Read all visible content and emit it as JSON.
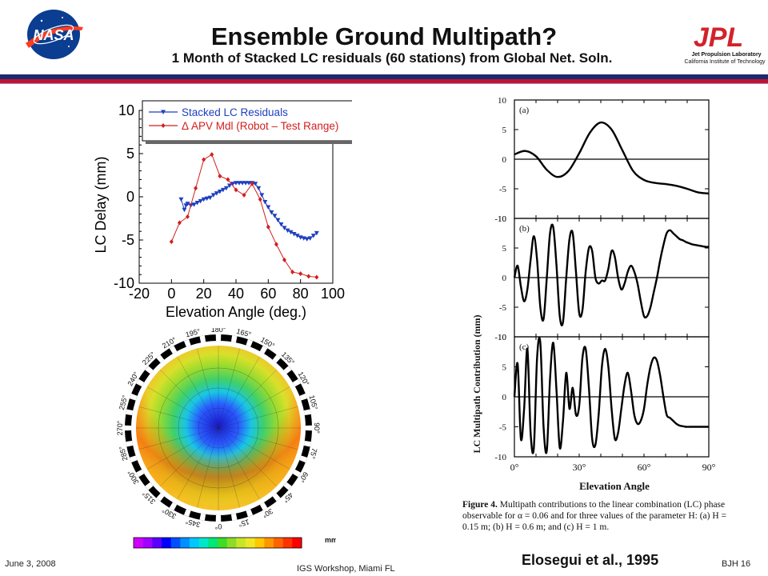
{
  "slide": {
    "title": "Ensemble Ground Multipath?",
    "subtitle": "1 Month of Stacked LC residuals (60 stations) from Global Net. Soln.",
    "date": "June 3, 2008",
    "venue": "IGS Workshop, Miami FL",
    "page": "BJH 16",
    "credit": "Elosegui et al., 1995",
    "nasa_logo_text": "NASA",
    "jpl_logo_text": "JPL",
    "jpl_line1": "Jet Propulsion Laboratory",
    "jpl_line2": "California Institute of Technology",
    "colors": {
      "rule_navy": "#1c2b6b",
      "rule_red": "#c8102e",
      "nasa_blue": "#0b3d91",
      "jpl_red": "#d2232a"
    }
  },
  "polar_plot": {
    "azimuth_labels": [
      "180°",
      "165°",
      "150°",
      "135°",
      "120°",
      "105°",
      "90°",
      "75°",
      "60°",
      "45°",
      "30°",
      "15°",
      "0°",
      "345°",
      "330°",
      "315°",
      "300°",
      "285°",
      "270°",
      "255°",
      "240°",
      "225°",
      "210°",
      "195°"
    ],
    "colorbar_unit": "mm"
  },
  "fig4": {
    "caption_label": "Figure 4.",
    "caption_text": "Multipath contributions to the linear combination (LC) phase observable for α = 0.06 and for three values of the parameter H: (a) H = 0.15 m; (b) H = 0.6 m; and (c) H = 1 m."
  },
  "chart_data": [
    {
      "type": "line",
      "xlabel": "Elevation Angle (deg.)",
      "ylabel": "LC Delay (mm)",
      "xlim": [
        -20,
        100
      ],
      "ylim": [
        -10,
        10
      ],
      "xticks": [
        -20,
        0,
        20,
        40,
        60,
        80,
        100
      ],
      "yticks": [
        10,
        5,
        0,
        -5,
        -10
      ],
      "legend": "top-right",
      "series": [
        {
          "name": "Stacked LC Residuals",
          "color": "#1f3fbf",
          "marker": "triangle-down",
          "x": [
            6,
            8,
            9,
            10,
            12,
            14,
            16,
            18,
            20,
            22,
            24,
            26,
            28,
            30,
            32,
            34,
            36,
            38,
            40,
            42,
            44,
            46,
            48,
            50,
            52,
            54,
            56,
            58,
            60,
            62,
            64,
            66,
            68,
            70,
            72,
            74,
            76,
            78,
            80,
            82,
            84,
            86,
            88,
            90
          ],
          "y": [
            -0.3,
            -1.5,
            -1.0,
            -0.8,
            -1.0,
            -0.9,
            -0.7,
            -0.5,
            -0.3,
            -0.2,
            -0.1,
            0.2,
            0.4,
            0.6,
            0.8,
            1.0,
            1.3,
            1.5,
            1.6,
            1.6,
            1.6,
            1.6,
            1.6,
            1.6,
            1.5,
            1.0,
            0.2,
            -0.6,
            -1.2,
            -1.8,
            -2.2,
            -2.7,
            -3.2,
            -3.6,
            -3.9,
            -4.1,
            -4.3,
            -4.5,
            -4.7,
            -4.8,
            -4.9,
            -4.8,
            -4.5,
            -4.2
          ]
        },
        {
          "name": "Δ APV Mdl (Robot – Test Range)",
          "color": "#d21e1e",
          "marker": "diamond",
          "x": [
            0,
            5,
            10,
            15,
            20,
            25,
            30,
            35,
            40,
            45,
            50,
            55,
            60,
            65,
            70,
            75,
            80,
            85,
            90
          ],
          "y": [
            -5.2,
            -3.0,
            -2.3,
            1.0,
            4.3,
            4.9,
            2.4,
            2.0,
            0.8,
            0.2,
            1.5,
            -0.3,
            -3.5,
            -5.5,
            -7.3,
            -8.7,
            -8.9,
            -9.2,
            -9.3
          ]
        }
      ]
    },
    {
      "type": "line",
      "panel": "(a)",
      "xlabel": "Elevation Angle",
      "ylabel": "LC Multipath Contribution (mm)",
      "xlim": [
        0,
        90
      ],
      "ylim": [
        -10,
        10
      ],
      "xticks": [
        "0°",
        "30°",
        "60°",
        "90°"
      ],
      "yticks": [
        10,
        5,
        0,
        -5,
        -10
      ],
      "series": [
        {
          "values_x": [
            0,
            5,
            10,
            15,
            20,
            25,
            30,
            35,
            40,
            45,
            50,
            55,
            60,
            65,
            70,
            75,
            80,
            85,
            90
          ],
          "values_y": [
            0.8,
            1.4,
            0.5,
            -1.8,
            -3.0,
            -2.0,
            1.0,
            4.5,
            6.2,
            5.0,
            1.5,
            -2.0,
            -3.5,
            -4.0,
            -4.2,
            -4.5,
            -5.0,
            -5.6,
            -5.8
          ]
        }
      ]
    },
    {
      "type": "line",
      "panel": "(b)",
      "xlim": [
        0,
        90
      ],
      "ylim": [
        -10,
        10
      ],
      "yticks": [
        10,
        5,
        0,
        -5,
        -10
      ],
      "series": [
        {
          "values_x": [
            0,
            1.5,
            3,
            4.5,
            6,
            7.5,
            9,
            10.5,
            12,
            13.5,
            15,
            16.5,
            18,
            19.5,
            21,
            22.5,
            24,
            25.5,
            27,
            28.5,
            30,
            31.5,
            33,
            34.5,
            36,
            37.5,
            39,
            40.5,
            42,
            43.5,
            45,
            46.5,
            48,
            49.5,
            51,
            52.5,
            54,
            55.5,
            57,
            58.5,
            60,
            61.5,
            63,
            64.5,
            66,
            67.5,
            69,
            70.5,
            72,
            73.5,
            75,
            76.5,
            78,
            79.5,
            81,
            82.5,
            84,
            85.5,
            87,
            88.5,
            90
          ],
          "values_y": [
            0,
            2.0,
            -1.5,
            -4.0,
            -2.0,
            3.0,
            7.0,
            3.0,
            -5.0,
            -7.0,
            0,
            7.5,
            8.5,
            2.0,
            -6.5,
            -7.5,
            0,
            6.5,
            7.5,
            1.0,
            -6.0,
            -5.5,
            1.0,
            5.0,
            4.5,
            0,
            -1.0,
            -0.5,
            -0.5,
            1.5,
            4.5,
            3.5,
            0,
            -2.0,
            -1.0,
            1.0,
            2.0,
            1.0,
            -1.0,
            -4.0,
            -6.5,
            -6.5,
            -5.0,
            -2.5,
            0,
            3.0,
            5.5,
            7.5,
            8.0,
            7.5,
            7.0,
            6.5,
            6.3,
            6.0,
            5.8,
            5.6,
            5.5,
            5.4,
            5.3,
            5.2,
            5.2
          ]
        }
      ]
    },
    {
      "type": "line",
      "panel": "(c)",
      "xlim": [
        0,
        90
      ],
      "ylim": [
        -10,
        10
      ],
      "yticks": [
        10,
        5,
        0,
        -5,
        -10
      ],
      "series": [
        {
          "values_x": [
            0,
            1.5,
            3,
            4.5,
            6,
            7.5,
            9,
            10.5,
            12,
            13.5,
            15,
            16.5,
            18,
            19.5,
            21,
            22.5,
            24,
            25.5,
            27,
            28.5,
            30,
            31.5,
            33,
            34.5,
            36,
            37.5,
            39,
            40.5,
            42,
            43.5,
            45,
            46.5,
            48,
            49.5,
            51,
            52.5,
            54,
            55.5,
            57,
            58.5,
            60,
            61.5,
            63,
            64.5,
            66,
            67.5,
            69,
            70.5,
            72,
            73.5,
            75,
            76.5,
            78,
            79.5,
            81,
            82.5,
            84,
            85.5,
            87,
            88.5,
            90
          ],
          "values_y": [
            0,
            5.5,
            -7.0,
            -2.0,
            8.0,
            -6.0,
            -8.5,
            6.5,
            9.0,
            -5.0,
            -9.0,
            3.0,
            9.0,
            1.0,
            -8.5,
            -4.0,
            4.0,
            -2.0,
            1.5,
            -3.0,
            -1.5,
            6.5,
            8.0,
            1.5,
            -7.0,
            -8.0,
            -3.0,
            5.0,
            8.0,
            5.0,
            -2.0,
            -7.0,
            -6.0,
            -2.0,
            2.0,
            4.0,
            1.0,
            -3.0,
            -4.5,
            -4.0,
            -2.0,
            2.0,
            5.0,
            6.5,
            6.0,
            3.5,
            0,
            -3.0,
            -3.5,
            -4.0,
            -4.5,
            -4.8,
            -4.9,
            -5.0,
            -5.0,
            -5.0,
            -5.0,
            -5.0,
            -5.0,
            -5.0,
            -5.0
          ]
        }
      ]
    }
  ]
}
